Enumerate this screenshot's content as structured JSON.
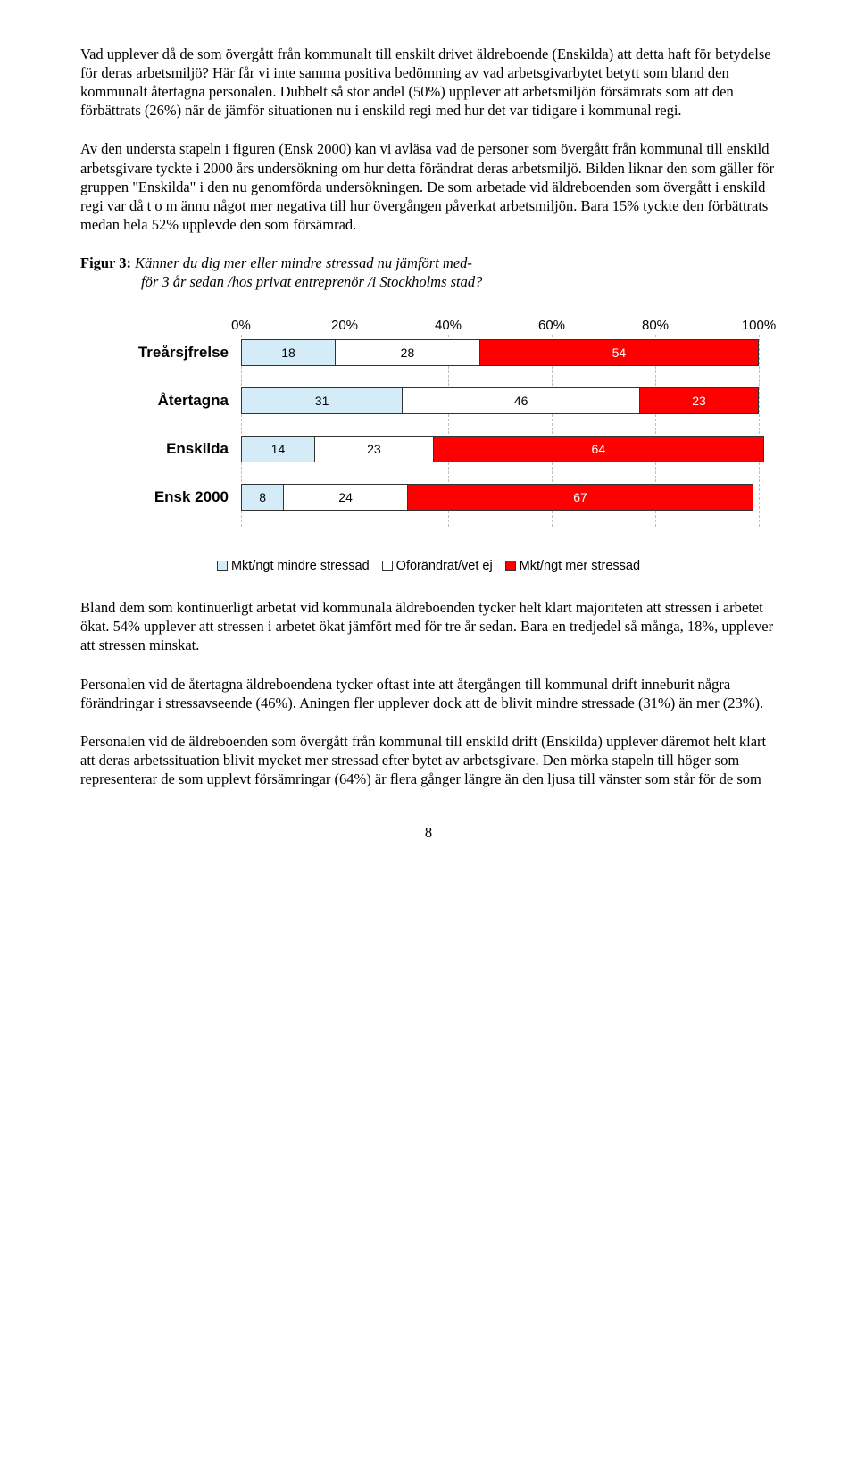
{
  "paragraphs": {
    "p1": "Vad upplever då de som övergått från kommunalt till enskilt drivet äldreboende (Enskilda) att detta haft för betydelse för deras arbetsmiljö? Här får vi inte samma positiva bedömning av vad arbetsgivarbytet betytt som bland den kommunalt återtagna personalen. Dubbelt så stor andel (50%) upplever att arbetsmiljön försämrats som att den förbättrats (26%) när de jämför situationen nu i enskild regi med hur det var tidigare i kommunal regi.",
    "p2": "Av den understa stapeln i figuren (Ensk 2000) kan vi avläsa vad de personer som övergått från kommunal till enskild arbetsgivare tyckte i 2000 års undersökning om hur detta förändrat deras arbetsmiljö. Bilden liknar den som gäller för gruppen \"Enskilda\" i den nu genomförda undersökningen. De som arbetade vid äldreboenden som övergått i enskild regi var då t o m ännu något mer negativa till hur övergången påverkat arbetsmiljön. Bara 15% tyckte den förbättrats medan hela 52% upplevde den som försämrad.",
    "p3": "Bland dem som kontinuerligt arbetat vid kommunala äldreboenden tycker helt klart majoriteten att stressen i arbetet ökat. 54% upplever att stressen i arbetet ökat jämfört med för tre år sedan. Bara en tredjedel så många, 18%, upplever att stressen minskat.",
    "p4": "Personalen vid de återtagna äldreboendena tycker oftast inte att återgången till kommunal drift inneburit några förändringar i stressavseende (46%). Aningen fler upplever dock att de blivit mindre stressade (31%) än mer (23%).",
    "p5": "Personalen vid de äldreboenden som övergått från kommunal till enskild drift (Enskilda) upplever däremot helt klart att deras arbetssituation blivit mycket mer stressad efter bytet av arbetsgivare. Den mörka stapeln till höger som representerar de som upplevt försämringar (64%) är flera gånger längre än den ljusa till vänster som står för de som"
  },
  "figure": {
    "label_bold": "Figur 3:",
    "label_italic_line1": " Känner du dig mer eller mindre stressad nu jämfört med-",
    "label_italic_line2": "för 3 år sedan /hos privat entreprenör /i Stockholms stad?"
  },
  "chart": {
    "type": "stacked-bar-horizontal",
    "axis_ticks": [
      "0%",
      "20%",
      "40%",
      "60%",
      "80%",
      "100%"
    ],
    "colors": {
      "less": "#d4ecf7",
      "unchanged": "#ffffff",
      "more": "#ff0000",
      "grid": "#bfbfbf",
      "border": "#333333",
      "text": "#000000"
    },
    "rows": [
      {
        "label": "Treårsjfrelse",
        "values": [
          18,
          28,
          54
        ]
      },
      {
        "label": "Återtagna",
        "values": [
          31,
          46,
          23
        ]
      },
      {
        "label": "Enskilda",
        "values": [
          14,
          23,
          64
        ]
      },
      {
        "label": "Ensk 2000",
        "values": [
          8,
          24,
          67
        ]
      }
    ],
    "legend": [
      {
        "label": "Mkt/ngt mindre stressad",
        "color": "#d4ecf7"
      },
      {
        "label": "Oförändrat/vet ej",
        "color": "#ffffff"
      },
      {
        "label": "Mkt/ngt mer stressad",
        "color": "#ff0000"
      }
    ]
  },
  "page_number": "8"
}
